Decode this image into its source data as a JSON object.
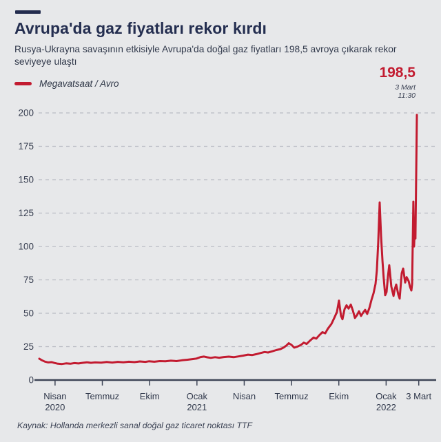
{
  "page": {
    "background": "#e7e8ea"
  },
  "header": {
    "kicker_bar_color": "#232c4e",
    "title": "Avrupa'da gaz fiyatları rekor kırdı",
    "subtitle": "Rusya-Ukrayna savaşının etkisiyle Avrupa'da doğal gaz fiyatları 198,5 avroya çıkarak rekor seviyeye ulaştı"
  },
  "legend": {
    "label": "Megavatsaat / Avro",
    "swatch_color": "#c21b30"
  },
  "annotation": {
    "value": "198,5",
    "date": "3 Mart",
    "time": "11:30",
    "color": "#c21b30"
  },
  "source": "Kaynak: Hollanda merkezli sanal doğal gaz ticaret noktası TTF",
  "chart_data": {
    "type": "line",
    "title": "Avrupa'da gaz fiyatları rekor kırdı",
    "xlabel": "",
    "ylabel": "Megavatsaat / Avro",
    "x_unit": "months since Mart 2020",
    "y_range": [
      0,
      200
    ],
    "grid": "horizontal-dashed",
    "legend_position": "top-left",
    "y_ticks": [
      0,
      25,
      50,
      75,
      100,
      125,
      150,
      175,
      200
    ],
    "x_ticks": [
      {
        "t": 1,
        "label": "Nisan",
        "sublabel": "2020"
      },
      {
        "t": 4,
        "label": "Temmuz"
      },
      {
        "t": 7,
        "label": "Ekim"
      },
      {
        "t": 10,
        "label": "Ocak",
        "sublabel": "2021"
      },
      {
        "t": 13,
        "label": "Nisan"
      },
      {
        "t": 16,
        "label": "Temmuz"
      },
      {
        "t": 19,
        "label": "Ekim"
      },
      {
        "t": 22,
        "label": "Ocak",
        "sublabel": "2022"
      },
      {
        "t": 24.07,
        "label": "3 Mart"
      }
    ],
    "series": [
      {
        "name": "Megavatsaat / Avro",
        "color": "#c21b30",
        "points": [
          [
            0,
            16
          ],
          [
            0.17,
            14.8
          ],
          [
            0.35,
            13.8
          ],
          [
            0.57,
            13.2
          ],
          [
            0.79,
            13.4
          ],
          [
            0.96,
            12.8
          ],
          [
            1.18,
            12.2
          ],
          [
            1.44,
            12
          ],
          [
            1.7,
            12.5
          ],
          [
            1.97,
            12.2
          ],
          [
            2.23,
            12.7
          ],
          [
            2.49,
            12.4
          ],
          [
            2.75,
            12.9
          ],
          [
            3.02,
            13.3
          ],
          [
            3.28,
            12.9
          ],
          [
            3.54,
            13.2
          ],
          [
            3.93,
            13
          ],
          [
            4.28,
            13.5
          ],
          [
            4.63,
            13.1
          ],
          [
            4.98,
            13.6
          ],
          [
            5.33,
            13.3
          ],
          [
            5.68,
            13.7
          ],
          [
            6.03,
            13.4
          ],
          [
            6.38,
            13.9
          ],
          [
            6.73,
            13.6
          ],
          [
            6.95,
            14
          ],
          [
            7.3,
            13.7
          ],
          [
            7.65,
            14.2
          ],
          [
            8,
            14
          ],
          [
            8.35,
            14.5
          ],
          [
            8.7,
            14.2
          ],
          [
            9.05,
            14.8
          ],
          [
            9.4,
            15.2
          ],
          [
            9.75,
            15.7
          ],
          [
            9.97,
            16.1
          ],
          [
            10.23,
            17.2
          ],
          [
            10.45,
            17.6
          ],
          [
            10.66,
            17
          ],
          [
            10.88,
            16.6
          ],
          [
            11.15,
            17.1
          ],
          [
            11.41,
            16.7
          ],
          [
            11.71,
            17.2
          ],
          [
            12.02,
            17.5
          ],
          [
            12.33,
            17.1
          ],
          [
            12.63,
            17.7
          ],
          [
            12.94,
            18.3
          ],
          [
            13.24,
            19
          ],
          [
            13.51,
            18.7
          ],
          [
            13.77,
            19.4
          ],
          [
            14.03,
            20.2
          ],
          [
            14.29,
            21
          ],
          [
            14.51,
            20.6
          ],
          [
            14.77,
            21.5
          ],
          [
            15.03,
            22.4
          ],
          [
            15.3,
            23.2
          ],
          [
            15.52,
            24.5
          ],
          [
            15.69,
            26
          ],
          [
            15.82,
            27.6
          ],
          [
            16,
            26.3
          ],
          [
            16.17,
            24.3
          ],
          [
            16.39,
            25.1
          ],
          [
            16.61,
            26.4
          ],
          [
            16.78,
            28
          ],
          [
            16.96,
            27
          ],
          [
            17.18,
            29.6
          ],
          [
            17.4,
            31.8
          ],
          [
            17.57,
            31
          ],
          [
            17.75,
            33.4
          ],
          [
            17.96,
            35.8
          ],
          [
            18.14,
            35
          ],
          [
            18.31,
            38.5
          ],
          [
            18.53,
            42
          ],
          [
            18.71,
            46.5
          ],
          [
            18.88,
            51
          ],
          [
            19.01,
            59.5
          ],
          [
            19.14,
            48
          ],
          [
            19.23,
            45.5
          ],
          [
            19.36,
            53
          ],
          [
            19.49,
            56
          ],
          [
            19.62,
            53.5
          ],
          [
            19.76,
            56.5
          ],
          [
            19.89,
            52
          ],
          [
            20.02,
            46.5
          ],
          [
            20.15,
            48.5
          ],
          [
            20.28,
            51.5
          ],
          [
            20.41,
            48
          ],
          [
            20.54,
            50.5
          ],
          [
            20.67,
            52.5
          ],
          [
            20.8,
            49.5
          ],
          [
            20.94,
            54
          ],
          [
            21.07,
            60
          ],
          [
            21.2,
            65
          ],
          [
            21.33,
            72
          ],
          [
            21.41,
            82
          ],
          [
            21.5,
            103
          ],
          [
            21.59,
            133
          ],
          [
            21.68,
            108
          ],
          [
            21.77,
            89
          ],
          [
            21.85,
            76
          ],
          [
            21.94,
            63.5
          ],
          [
            22.03,
            66
          ],
          [
            22.12,
            78
          ],
          [
            22.2,
            86
          ],
          [
            22.33,
            70
          ],
          [
            22.47,
            63
          ],
          [
            22.55,
            68
          ],
          [
            22.64,
            71.5
          ],
          [
            22.77,
            64
          ],
          [
            22.86,
            61
          ],
          [
            22.99,
            80
          ],
          [
            23.08,
            83.5
          ],
          [
            23.21,
            73
          ],
          [
            23.3,
            77
          ],
          [
            23.43,
            74
          ],
          [
            23.51,
            70
          ],
          [
            23.6,
            67
          ],
          [
            23.65,
            72
          ],
          [
            23.73,
            133.5
          ],
          [
            23.77,
            100
          ],
          [
            23.83,
            116
          ],
          [
            23.86,
            106
          ],
          [
            23.95,
            198.5
          ]
        ]
      }
    ],
    "peak": {
      "value": 198.5,
      "label": "198,5",
      "date": "3 Mart",
      "time": "11:30"
    }
  }
}
